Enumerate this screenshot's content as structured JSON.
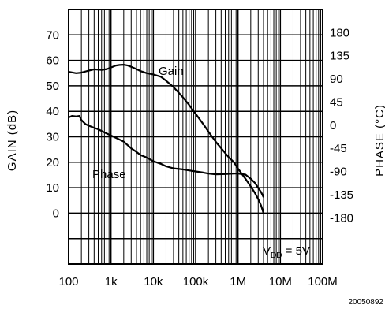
{
  "chart_data": {
    "type": "line",
    "x_scale": "log",
    "grid": true,
    "xlim": [
      100,
      100000000
    ],
    "ylim": [
      -20,
      80
    ],
    "y2lim": [
      -270,
      225
    ],
    "xlabel": "",
    "ylabel": "GAIN (dB)",
    "y2label": "PHASE (°C)",
    "x_ticks": [
      "100",
      "1k",
      "10k",
      "100k",
      "1M",
      "10M",
      "100M"
    ],
    "y_ticks": [
      "70",
      "60",
      "50",
      "40",
      "30",
      "20",
      "10",
      "0"
    ],
    "y2_ticks": [
      "180",
      "135",
      "90",
      "45",
      "0",
      "-45",
      "-90",
      "-135",
      "-180"
    ],
    "series": [
      {
        "name": "Gain",
        "axis": "left",
        "x": [
          100,
          150,
          200,
          300,
          400,
          600,
          800,
          1000,
          1300,
          1600,
          2000,
          2500,
          3000,
          4000,
          5000,
          7000,
          10000,
          15000,
          20000,
          30000,
          50000,
          70000,
          100000,
          150000,
          200000,
          300000,
          400000,
          600000,
          800000,
          1000000,
          1500000,
          2000000,
          2500000,
          3000000,
          3500000,
          4000000
        ],
        "y": [
          55.5,
          55,
          55.2,
          56,
          56.5,
          56.3,
          56.6,
          57.2,
          58,
          58.2,
          58.3,
          58,
          57.5,
          56.6,
          55.8,
          55,
          54.5,
          53.6,
          52,
          49.5,
          45.5,
          42.5,
          39,
          35,
          32,
          28,
          25.5,
          22,
          20,
          17.5,
          13.5,
          10.5,
          8,
          5.5,
          3,
          0
        ]
      },
      {
        "name": "Phase",
        "axis": "right",
        "x": [
          100,
          120,
          150,
          180,
          200,
          250,
          300,
          400,
          500,
          700,
          1000,
          1500,
          2000,
          3000,
          4000,
          5000,
          7000,
          10000,
          15000,
          20000,
          30000,
          50000,
          70000,
          100000,
          150000,
          200000,
          300000,
          500000,
          800000,
          1000000,
          1500000,
          2000000,
          2500000,
          3000000,
          3500000,
          4000000
        ],
        "y": [
          15,
          18,
          17,
          18,
          10,
          2,
          -1,
          -5,
          -8,
          -14,
          -20,
          -27,
          -32,
          -45,
          -52,
          -58,
          -63,
          -70,
          -75,
          -80,
          -84,
          -86,
          -88,
          -90,
          -92,
          -94,
          -95.5,
          -95,
          -94,
          -94,
          -96,
          -104,
          -112,
          -122,
          -130,
          -140
        ]
      }
    ],
    "annotations": [
      "Gain",
      "Phase"
    ],
    "condition": {
      "main": "V",
      "sub": "DD",
      "rest": " = 5V"
    },
    "figure_id": "20050892"
  }
}
